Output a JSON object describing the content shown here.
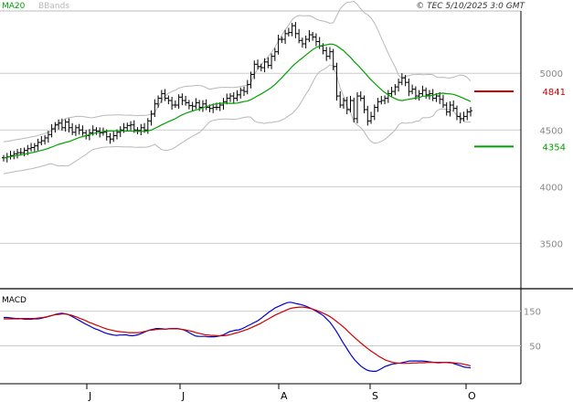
{
  "header": {
    "indicators": [
      {
        "label": "MA20",
        "color": "#00a000"
      },
      {
        "label": "BBands",
        "color": "#b8b8b8"
      }
    ],
    "copyright": "© TEC 5/10/2025 3:0 GMT"
  },
  "chart_data": [
    {
      "type": "ohlc",
      "yaxis": {
        "ticks": [
          3500,
          4000,
          4500,
          5000
        ],
        "range": [
          3100,
          5550
        ]
      },
      "xaxis": {
        "ticks": [
          "J",
          "J",
          "A",
          "S",
          "O"
        ]
      },
      "levels": [
        {
          "value": 4841,
          "label": "4841",
          "color": "#cc0000"
        },
        {
          "value": 4354,
          "label": "4354",
          "color": "#00a000"
        }
      ],
      "close": [
        4255,
        4265,
        4275,
        4290,
        4300,
        4300,
        4320,
        4335,
        4345,
        4360,
        4390,
        4405,
        4430,
        4460,
        4510,
        4545,
        4560,
        4520,
        4570,
        4520,
        4480,
        4520,
        4500,
        4475,
        4450,
        4475,
        4500,
        4490,
        4475,
        4480,
        4440,
        4420,
        4450,
        4480,
        4500,
        4520,
        4540,
        4545,
        4500,
        4495,
        4520,
        4500,
        4580,
        4640,
        4730,
        4780,
        4820,
        4780,
        4760,
        4720,
        4720,
        4790,
        4760,
        4740,
        4715,
        4710,
        4740,
        4700,
        4730,
        4700,
        4690,
        4700,
        4700,
        4720,
        4750,
        4780,
        4800,
        4780,
        4810,
        4850,
        4840,
        4900,
        4990,
        5080,
        5060,
        5050,
        5100,
        5070,
        5150,
        5190,
        5300,
        5300,
        5350,
        5360,
        5420,
        5350,
        5290,
        5260,
        5300,
        5340,
        5320,
        5280,
        5240,
        5200,
        5150,
        5190,
        5060,
        4800,
        4720,
        4760,
        4680,
        4760,
        4600,
        4800,
        4780,
        4680,
        4580,
        4620,
        4700,
        4750,
        4760,
        4780,
        4820,
        4840,
        4880,
        4920,
        4960,
        4920,
        4840,
        4860,
        4800,
        4820,
        4850,
        4810,
        4820,
        4780,
        4800,
        4770,
        4720,
        4660,
        4720,
        4690,
        4620,
        4600,
        4620,
        4660,
        4670
      ]
    },
    {
      "type": "line",
      "title": "MACD",
      "yaxis": {
        "ticks": [
          50,
          150
        ],
        "range": [
          -60,
          210
        ]
      },
      "series": [
        {
          "color": "#0000cc",
          "values": [
            132,
            132,
            131,
            130,
            129,
            129,
            128,
            127,
            127,
            127,
            128,
            128,
            129,
            131,
            133,
            136,
            138,
            141,
            143,
            144,
            143,
            141,
            137,
            132,
            127,
            122,
            117,
            112,
            108,
            103,
            99,
            96,
            92,
            88,
            85,
            83,
            81,
            80,
            81,
            81,
            82,
            80,
            79,
            80,
            82,
            85,
            89,
            93,
            96,
            98,
            100,
            100,
            99,
            98,
            99,
            100,
            100,
            100,
            98,
            96,
            92,
            87,
            82,
            78,
            77,
            77,
            77,
            76,
            76,
            76,
            77,
            79,
            82,
            86,
            91,
            93,
            95,
            96,
            99,
            103,
            108,
            112,
            117,
            121,
            127,
            134,
            141,
            148,
            154,
            160,
            164,
            168,
            172,
            175,
            176,
            174,
            172,
            170,
            168,
            165,
            161,
            157,
            152,
            147,
            142,
            135,
            126,
            117,
            105,
            92,
            77,
            62,
            48,
            34,
            21,
            9,
            0,
            -9,
            -15,
            -20,
            -23,
            -24,
            -24,
            -20,
            -15,
            -10,
            -7,
            -4,
            -2,
            -1,
            0,
            2,
            4,
            6,
            6,
            6,
            6,
            6,
            5,
            4,
            3,
            2,
            1,
            1,
            2,
            2,
            1,
            0,
            -3,
            -6,
            -9,
            -12,
            -13,
            -14
          ]
        },
        {
          "color": "#cc0000",
          "values": [
            128,
            128,
            128,
            128,
            128,
            128,
            129,
            129,
            129,
            129,
            129,
            130,
            131,
            132,
            134,
            136,
            138,
            140,
            141,
            142,
            142,
            141,
            139,
            136,
            133,
            129,
            126,
            122,
            118,
            115,
            111,
            108,
            104,
            101,
            98,
            96,
            94,
            92,
            91,
            90,
            89,
            88,
            88,
            88,
            88,
            89,
            91,
            93,
            95,
            96,
            97,
            98,
            98,
            98,
            99,
            99,
            99,
            99,
            98,
            97,
            95,
            93,
            91,
            88,
            86,
            84,
            82,
            81,
            80,
            80,
            79,
            79,
            79,
            80,
            82,
            84,
            87,
            89,
            92,
            95,
            98,
            102,
            106,
            110,
            114,
            119,
            124,
            129,
            134,
            139,
            143,
            147,
            151,
            155,
            158,
            160,
            161,
            162,
            162,
            161,
            159,
            157,
            154,
            151,
            147,
            143,
            139,
            134,
            128,
            121,
            114,
            107,
            99,
            90,
            82,
            74,
            66,
            58,
            51,
            44,
            37,
            31,
            25,
            19,
            14,
            9,
            6,
            3,
            1,
            0,
            -1,
            -1,
            -1,
            -1,
            0,
            0,
            1,
            1,
            1,
            2,
            2,
            2,
            2,
            2,
            2,
            2,
            2,
            1,
            0,
            -1,
            -2,
            -4,
            -6,
            -8
          ]
        }
      ]
    }
  ]
}
